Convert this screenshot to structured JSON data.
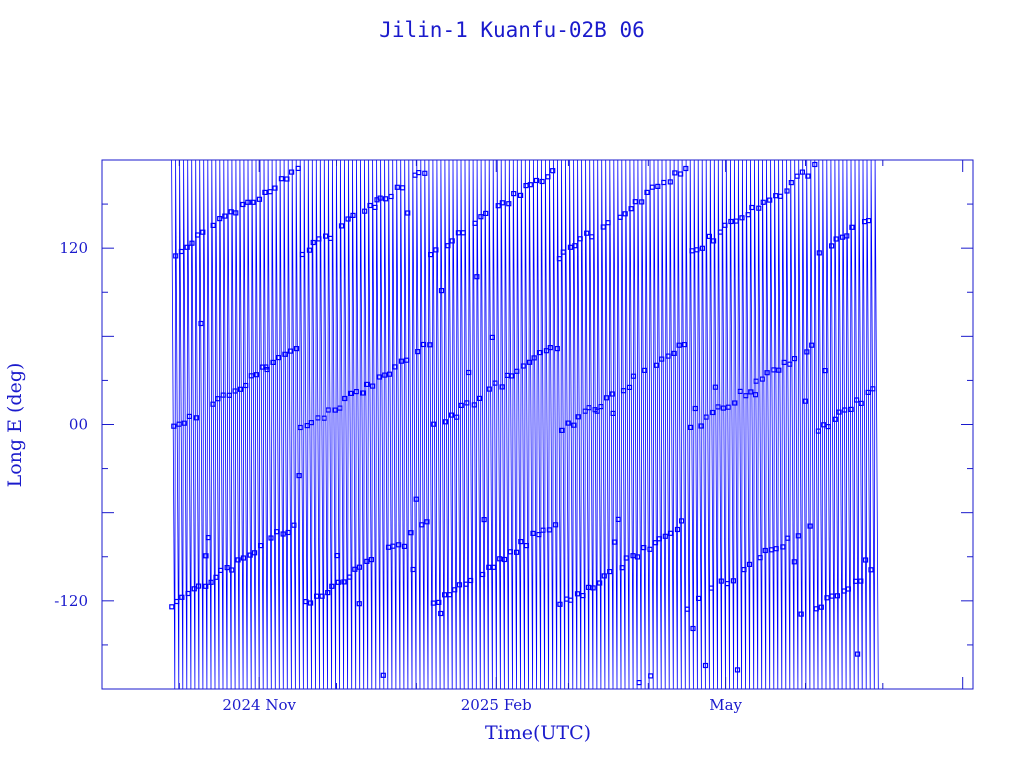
{
  "colors": {
    "axis": "#1a1acc",
    "series": "#0000ff",
    "background": "#ffffff"
  },
  "chart_data": {
    "type": "line",
    "title": "Jilin-1 Kuanfu-02B 06",
    "xlabel": "Time(UTC)",
    "ylabel": "Long E (deg)",
    "xaxis": {
      "kind": "date",
      "range": [
        "2024-09-01",
        "2025-08-05"
      ],
      "tick_labels": [
        {
          "value": "2024-11-01",
          "label": "2024 Nov"
        },
        {
          "value": "2025-02-01",
          "label": "2025 Feb"
        },
        {
          "value": "2025-05-01",
          "label": "May"
        }
      ]
    },
    "yaxis": {
      "range": [
        -180,
        180
      ],
      "tick_labels": [
        {
          "value": -120,
          "label": "-120"
        },
        {
          "value": 0,
          "label": "00"
        },
        {
          "value": 120,
          "label": "120"
        }
      ]
    },
    "grid": false,
    "series": [
      {
        "marker": "square",
        "description": "sub-satellite east longitude sweeping from +180 to -180 each orbit (sawtooth), sampled with square markers",
        "date_range": [
          "2024-09-28",
          "2025-06-28"
        ],
        "marker_bands_deg": [
          -95,
          25,
          145
        ],
        "drift_deg_per_day": 1.2
      }
    ]
  }
}
